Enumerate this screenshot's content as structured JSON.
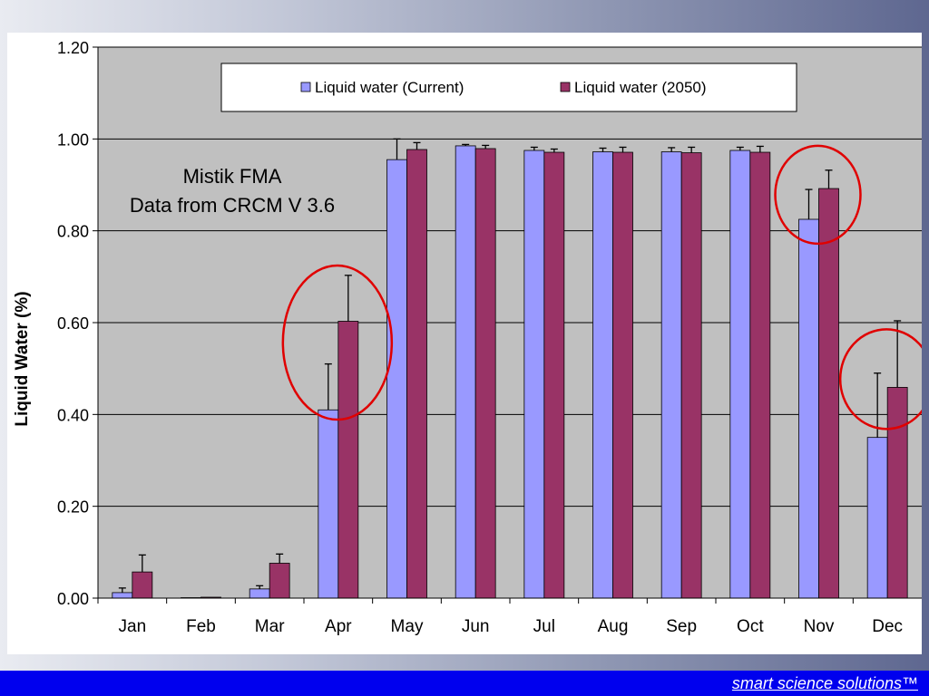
{
  "colors": {
    "plot_background": "#c0c0c0",
    "current": "#9999ff",
    "future": "#993366",
    "highlight_circle": "#e00000",
    "footer": "#0000ee"
  },
  "footer": {
    "link_text": "smart science solutions™"
  },
  "chart_data": {
    "type": "bar",
    "title": "",
    "annotation": [
      "Mistik FMA",
      "Data from CRCM V 3.6"
    ],
    "xlabel": "",
    "ylabel": "Liquid Water (%)",
    "ylim": [
      0,
      1.2
    ],
    "yticks": [
      "0.00",
      "0.20",
      "0.40",
      "0.60",
      "0.80",
      "1.00",
      "1.20"
    ],
    "grid": true,
    "legend_position": "top",
    "categories": [
      "Jan",
      "Feb",
      "Mar",
      "Apr",
      "May",
      "Jun",
      "Jul",
      "Aug",
      "Sep",
      "Oct",
      "Nov",
      "Dec"
    ],
    "series": [
      {
        "name": "Liquid water (Current)",
        "color": "#9999ff",
        "values": [
          0.012,
          0.001,
          0.02,
          0.41,
          0.955,
          0.985,
          0.975,
          0.972,
          0.972,
          0.975,
          0.825,
          0.35
        ],
        "error": [
          0.01,
          0.0,
          0.007,
          0.1,
          0.045,
          0.003,
          0.007,
          0.008,
          0.009,
          0.007,
          0.065,
          0.14
        ]
      },
      {
        "name": "Liquid water (2050)",
        "color": "#993366",
        "values": [
          0.057,
          0.002,
          0.076,
          0.603,
          0.977,
          0.979,
          0.971,
          0.971,
          0.97,
          0.971,
          0.892,
          0.459
        ],
        "error": [
          0.037,
          0.0,
          0.02,
          0.1,
          0.015,
          0.007,
          0.007,
          0.011,
          0.012,
          0.013,
          0.04,
          0.145
        ]
      }
    ],
    "highlighted_months": [
      "Apr",
      "Nov",
      "Dec"
    ]
  }
}
